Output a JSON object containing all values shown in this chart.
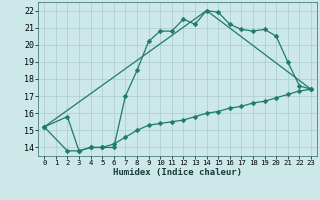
{
  "xlabel": "Humidex (Indice chaleur)",
  "xlim": [
    -0.5,
    23.5
  ],
  "ylim": [
    13.5,
    22.5
  ],
  "xticks": [
    0,
    1,
    2,
    3,
    4,
    5,
    6,
    7,
    8,
    9,
    10,
    11,
    12,
    13,
    14,
    15,
    16,
    17,
    18,
    19,
    20,
    21,
    22,
    23
  ],
  "yticks": [
    14,
    15,
    16,
    17,
    18,
    19,
    20,
    21,
    22
  ],
  "bg_color": "#cce8e8",
  "grid_color": "#aacccc",
  "line_color": "#1e7a6e",
  "line1_x": [
    0,
    2,
    3,
    4,
    5,
    6,
    7,
    8,
    9,
    10,
    11,
    12,
    13,
    14,
    15,
    16,
    17,
    18,
    19,
    20,
    21,
    22,
    23
  ],
  "line1_y": [
    15.2,
    15.8,
    13.8,
    14.0,
    14.0,
    14.0,
    17.0,
    18.5,
    20.2,
    20.8,
    20.8,
    21.5,
    21.2,
    22.0,
    21.9,
    21.2,
    20.9,
    20.8,
    20.9,
    20.5,
    19.0,
    17.6,
    17.4
  ],
  "line2_x": [
    0,
    2,
    3,
    4,
    5,
    6,
    7,
    8,
    9,
    10,
    11,
    12,
    13,
    14,
    15,
    16,
    17,
    18,
    19,
    20,
    21,
    22,
    23
  ],
  "line2_y": [
    15.2,
    13.8,
    13.8,
    14.0,
    14.0,
    14.2,
    14.6,
    15.0,
    15.3,
    15.4,
    15.5,
    15.6,
    15.8,
    16.0,
    16.1,
    16.3,
    16.4,
    16.6,
    16.7,
    16.9,
    17.1,
    17.3,
    17.4
  ],
  "line3_x": [
    0,
    14,
    23
  ],
  "line3_y": [
    15.2,
    22.0,
    17.4
  ]
}
